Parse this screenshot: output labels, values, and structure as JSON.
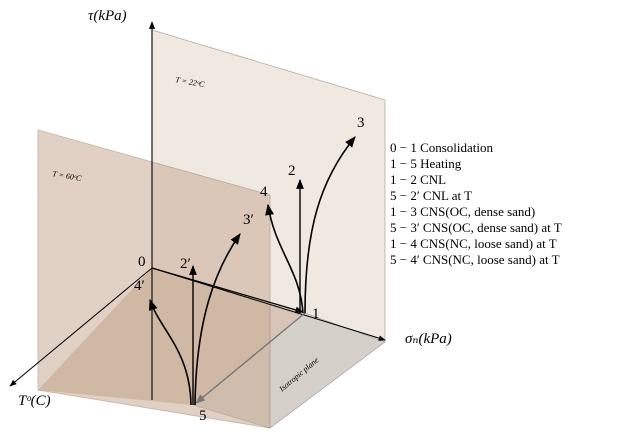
{
  "axes": {
    "tau": "τ(kPa)",
    "sigma": "σₙ(kPa)",
    "temperature": "Tᵒ(C)"
  },
  "planes": {
    "back": "T = 22ᵒC",
    "front": "T = 60ᵒC",
    "isotropic": "Isotropic plane"
  },
  "points": [
    "0",
    "1",
    "2",
    "3",
    "4",
    "5",
    "2′",
    "3′",
    "4′"
  ],
  "legend": [
    "0 − 1 Consolidation",
    "1 − 5 Heating",
    "1 − 2 CNL",
    "5 − 2′ CNL at T",
    "1 − 3 CNS(OC, dense sand)",
    "5 − 3′ CNS(OC, dense sand) at T",
    "1 − 4 CNS(NC, loose sand) at T",
    "5 − 4′ CNS(NC, loose sand) at T"
  ]
}
